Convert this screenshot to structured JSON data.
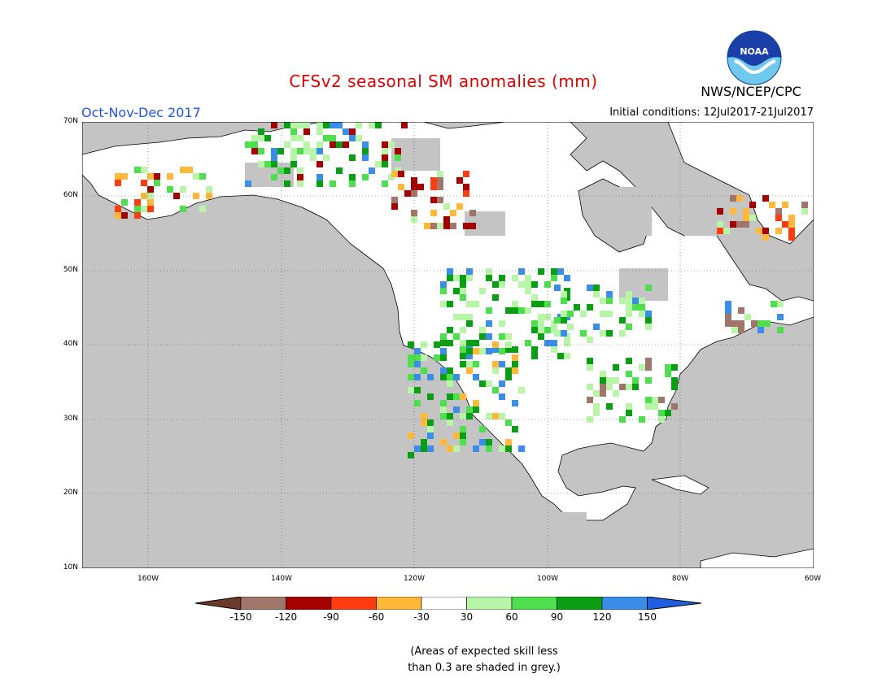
{
  "header": {
    "title": "CFSv2 seasonal SM anomalies (mm)",
    "season": "Oct-Nov-Dec 2017",
    "initial_conditions": "Initial conditions: 12Jul2017-21Jul2017",
    "agency": "NWS/NCEP/CPC",
    "logo_text": "NOAA"
  },
  "map": {
    "region": "North America",
    "lat_labels": [
      "70N",
      "60N",
      "50N",
      "40N",
      "30N",
      "20N",
      "10N"
    ],
    "lon_labels": [
      "160W",
      "140W",
      "120W",
      "100W",
      "80W",
      "60W"
    ],
    "lat_range": [
      10,
      70
    ],
    "lon_range": [
      -170,
      -60
    ],
    "grid": "dotted",
    "colors": {
      "water": "#ffffff",
      "low_skill": "#c4c4c4",
      "coast": "#000000"
    }
  },
  "legend": {
    "ticks": [
      "-150",
      "-120",
      "-90",
      "-60",
      "-30",
      "30",
      "60",
      "90",
      "120",
      "150"
    ],
    "colors": [
      "#6b3a2a",
      "#a0766a",
      "#a50000",
      "#ff3b10",
      "#ffb83a",
      "#ffffff",
      "#b8f5a8",
      "#4ede4e",
      "#0a9e14",
      "#3b8ee8",
      "#1f5ee0"
    ]
  },
  "note": {
    "line1": "(Areas of expected skill less",
    "line2": "than 0.3 are shaded in grey.)"
  }
}
